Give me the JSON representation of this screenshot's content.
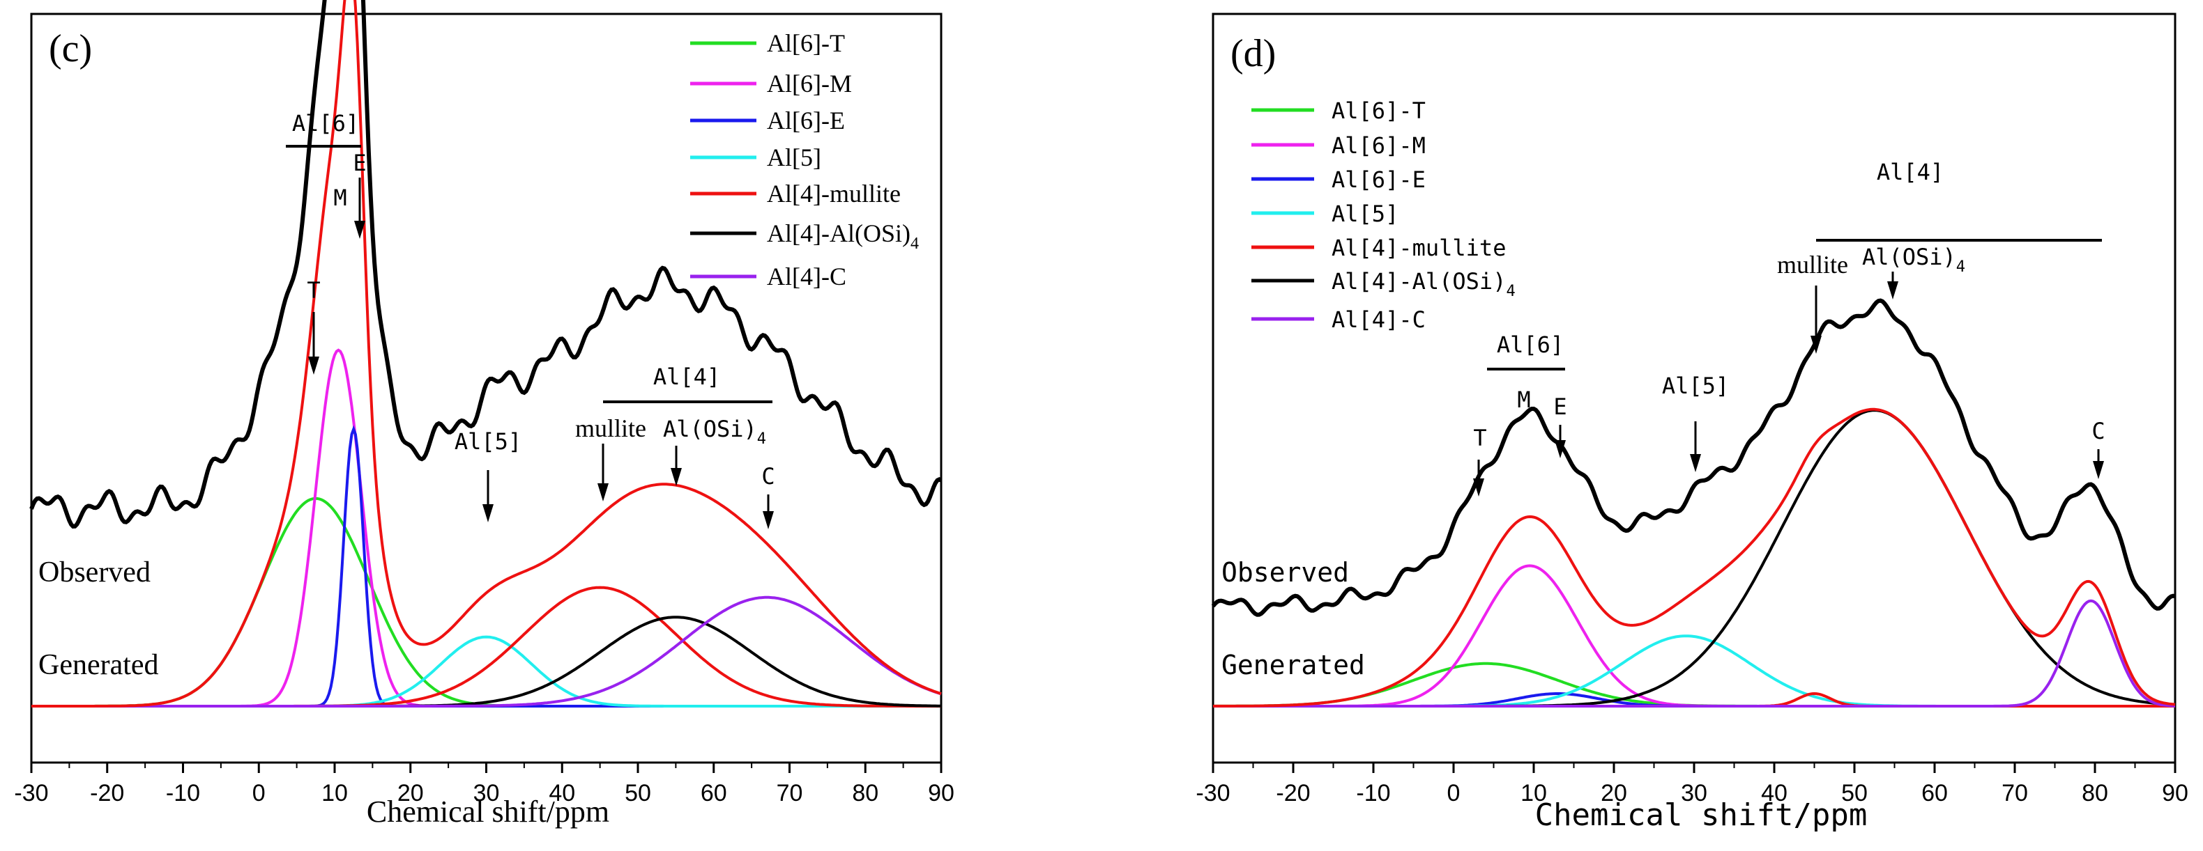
{
  "panels": [
    {
      "id": "c",
      "panel_label": "(c)",
      "xlabel": "Chemical shift/ppm",
      "xticks": [
        "-30",
        "-20",
        "-10",
        "0",
        "10",
        "20",
        "30",
        "40",
        "50",
        "60",
        "70",
        "80",
        "90"
      ],
      "legend": [
        {
          "label": "Al[6]-T",
          "color": "#22dd22"
        },
        {
          "label": "Al[6]-M",
          "color": "#ee22ee"
        },
        {
          "label": "Al[6]-E",
          "color": "#1a1aee"
        },
        {
          "label": "Al[5]",
          "color": "#22eeee"
        },
        {
          "label": "Al[4]-mullite",
          "color": "#ee1111"
        },
        {
          "label": "Al[4]-Al(OSi)",
          "sub": "4",
          "color": "#000000"
        },
        {
          "label": "Al[4]-C",
          "color": "#9922ee"
        }
      ],
      "curve_labels": {
        "observed": "Observed",
        "generated": "Generated"
      },
      "group_labels": {
        "al6": "Al[6]",
        "al4": "Al[4]",
        "al5": "Al[5]"
      },
      "marker_labels": {
        "T": "T",
        "M": "M",
        "E": "E",
        "mullite": "mullite",
        "alosi": "Al(OSi)",
        "alosi_sub": "4",
        "C": "C"
      }
    },
    {
      "id": "d",
      "panel_label": "(d)",
      "xlabel": "Chemical shift/ppm",
      "xticks": [
        "-30",
        "-20",
        "-10",
        "0",
        "10",
        "20",
        "30",
        "40",
        "50",
        "60",
        "70",
        "80",
        "90"
      ],
      "legend": [
        {
          "label": "Al[6]-T",
          "color": "#22dd22"
        },
        {
          "label": "Al[6]-M",
          "color": "#ee22ee"
        },
        {
          "label": "Al[6]-E",
          "color": "#1a1aee"
        },
        {
          "label": "Al[5]",
          "color": "#22eeee"
        },
        {
          "label": "Al[4]-mullite",
          "color": "#ee1111"
        },
        {
          "label": "Al[4]-Al(OSi)",
          "sub": "4",
          "color": "#000000"
        },
        {
          "label": "Al[4]-C",
          "color": "#9922ee"
        }
      ],
      "curve_labels": {
        "observed": "Observed",
        "generated": "Generated"
      },
      "group_labels": {
        "al6": "Al[6]",
        "al4": "Al[4]",
        "al5": "Al[5]"
      },
      "marker_labels": {
        "T": "T",
        "M": "M",
        "E": "E",
        "mullite": "mullite",
        "alosi": "Al(OSi)",
        "alosi_sub": "4",
        "C": "C"
      }
    }
  ],
  "chart_data": [
    {
      "type": "line",
      "title": "(c)",
      "xlabel": "Chemical shift/ppm",
      "ylabel": "",
      "xlim": [
        -30,
        90
      ],
      "series": [
        {
          "name": "Al[6]-T",
          "kind": "gaussian",
          "center": 7.5,
          "amplitude": 0.21,
          "sigma": 7.0
        },
        {
          "name": "Al[6]-M",
          "kind": "gaussian",
          "center": 10.5,
          "amplitude": 0.36,
          "sigma": 3.0
        },
        {
          "name": "Al[6]-E",
          "kind": "gaussian",
          "center": 12.5,
          "amplitude": 0.28,
          "sigma": 1.3
        },
        {
          "name": "Al[5]",
          "kind": "gaussian",
          "center": 30,
          "amplitude": 0.07,
          "sigma": 6.0
        },
        {
          "name": "Al[4]-mullite",
          "kind": "gaussian",
          "center": 45,
          "amplitude": 0.12,
          "sigma": 10.0
        },
        {
          "name": "Al[4]-Al(OSi)4",
          "kind": "gaussian",
          "center": 55,
          "amplitude": 0.09,
          "sigma": 10.0
        },
        {
          "name": "Al[4]-C",
          "kind": "gaussian",
          "center": 67,
          "amplitude": 0.11,
          "sigma": 11.0
        },
        {
          "name": "Generated",
          "kind": "sum",
          "offset": 0.0
        },
        {
          "name": "Observed",
          "kind": "sum",
          "offset": 0.2,
          "ripple": 0.012
        }
      ],
      "annotations": [
        {
          "text": "T",
          "x": 7.5
        },
        {
          "text": "M",
          "x": 10.5
        },
        {
          "text": "E",
          "x": 12.5
        },
        {
          "text": "Al[6]",
          "x": 8.5
        },
        {
          "text": "Al[5]",
          "x": 30
        },
        {
          "text": "mullite",
          "x": 45
        },
        {
          "text": "Al(OSi)4",
          "x": 55
        },
        {
          "text": "Al[4]",
          "x": 56
        },
        {
          "text": "C",
          "x": 67
        }
      ]
    },
    {
      "type": "line",
      "title": "(d)",
      "xlabel": "Chemical shift/ppm",
      "ylabel": "",
      "xlim": [
        -30,
        90
      ],
      "series": [
        {
          "name": "Al[6]-T",
          "kind": "gaussian",
          "center": 4,
          "amplitude": 0.085,
          "sigma": 9.0
        },
        {
          "name": "Al[6]-M",
          "kind": "gaussian",
          "center": 9.5,
          "amplitude": 0.28,
          "sigma": 6.0
        },
        {
          "name": "Al[6]-E",
          "kind": "gaussian",
          "center": 13,
          "amplitude": 0.025,
          "sigma": 5.0
        },
        {
          "name": "Al[5]",
          "kind": "gaussian",
          "center": 29,
          "amplitude": 0.14,
          "sigma": 8.0
        },
        {
          "name": "Al[4]-mullite",
          "kind": "gaussian",
          "center": 45,
          "amplitude": 0.025,
          "sigma": 2.0
        },
        {
          "name": "Al[4]-Al(OSi)4",
          "kind": "gaussian",
          "center": 52.5,
          "amplitude": 0.59,
          "sigma": 11.5
        },
        {
          "name": "Al[4]-C",
          "kind": "gaussian",
          "center": 79.5,
          "amplitude": 0.21,
          "sigma": 3.0
        },
        {
          "name": "Generated",
          "kind": "sum",
          "offset": 0.0
        },
        {
          "name": "Observed",
          "kind": "sum",
          "offset": 0.2,
          "ripple": 0.012
        }
      ],
      "annotations": [
        {
          "text": "T",
          "x": 3
        },
        {
          "text": "M",
          "x": 9.5
        },
        {
          "text": "E",
          "x": 13
        },
        {
          "text": "Al[6]",
          "x": 8
        },
        {
          "text": "Al[5]",
          "x": 29
        },
        {
          "text": "mullite",
          "x": 45
        },
        {
          "text": "Al(OSi)4",
          "x": 54.5
        },
        {
          "text": "Al[4]",
          "x": 61
        },
        {
          "text": "C",
          "x": 80
        }
      ]
    }
  ]
}
